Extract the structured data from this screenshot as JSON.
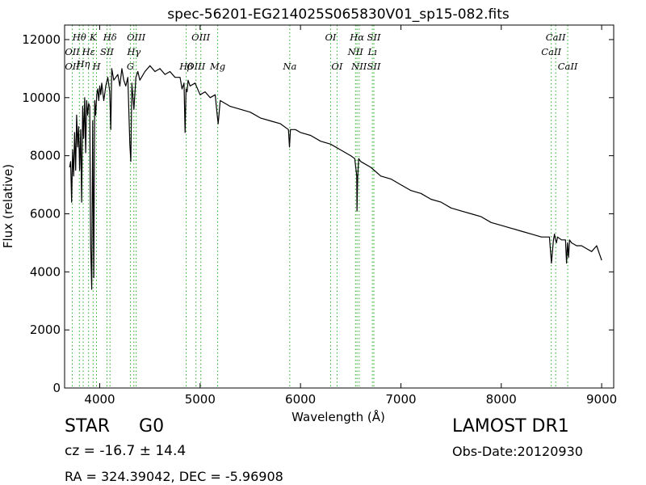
{
  "chart_data": {
    "type": "line",
    "title": "spec-56201-EG214025S065830V01_sp15-082.fits",
    "xlabel": "Wavelength (Å)",
    "ylabel": "Flux (relative)",
    "xlim": [
      3650,
      9120
    ],
    "ylim": [
      0,
      12500
    ],
    "xticks": [
      4000,
      5000,
      6000,
      7000,
      8000,
      9000
    ],
    "yticks": [
      0,
      2000,
      4000,
      6000,
      8000,
      10000,
      12000
    ],
    "line_color": "#000000",
    "marker_color": "#22aa22",
    "series": [
      {
        "x": [
          3700,
          3710,
          3720,
          3730,
          3740,
          3750,
          3760,
          3770,
          3780,
          3790,
          3800,
          3810,
          3820,
          3830,
          3840,
          3850,
          3860,
          3870,
          3880,
          3890,
          3900,
          3910,
          3920,
          3930,
          3940,
          3950,
          3960,
          3970,
          3980,
          3990,
          4000,
          4010,
          4020,
          4040,
          4060,
          4080,
          4100,
          4110,
          4120,
          4140,
          4160,
          4180,
          4200,
          4220,
          4240,
          4260,
          4280,
          4300,
          4310,
          4320,
          4340,
          4360,
          4380,
          4400,
          4450,
          4500,
          4550,
          4600,
          4650,
          4700,
          4750,
          4800,
          4820,
          4840,
          4850,
          4860,
          4870,
          4880,
          4900,
          4950,
          5000,
          5050,
          5100,
          5150,
          5170,
          5180,
          5200,
          5250,
          5300,
          5400,
          5500,
          5600,
          5700,
          5800,
          5880,
          5890,
          5900,
          5950,
          6000,
          6100,
          6200,
          6300,
          6400,
          6500,
          6540,
          6560,
          6563,
          6570,
          6580,
          6600,
          6700,
          6800,
          6900,
          7000,
          7100,
          7200,
          7300,
          7400,
          7500,
          7600,
          7700,
          7800,
          7900,
          8000,
          8100,
          8200,
          8300,
          8400,
          8480,
          8500,
          8520,
          8530,
          8540,
          8550,
          8560,
          8600,
          8640,
          8650,
          8660,
          8670,
          8680,
          8700,
          8750,
          8800,
          8850,
          8900,
          8950,
          8980,
          9000
        ],
        "y": [
          7600,
          7800,
          6400,
          8200,
          7300,
          8800,
          7500,
          9400,
          8300,
          9000,
          7500,
          8900,
          6400,
          9700,
          8600,
          10000,
          8100,
          9900,
          9400,
          9800,
          9700,
          4900,
          3400,
          9200,
          3800,
          9900,
          9400,
          10100,
          10300,
          9900,
          10400,
          10100,
          10500,
          9900,
          10400,
          10700,
          10200,
          8900,
          11000,
          10600,
          10700,
          10800,
          10400,
          11000,
          10600,
          10400,
          10700,
          8400,
          7800,
          10500,
          9600,
          10700,
          10900,
          10600,
          10900,
          11100,
          10900,
          11000,
          10800,
          10900,
          10700,
          10700,
          10300,
          10500,
          8800,
          10300,
          10200,
          10600,
          10400,
          10500,
          10100,
          10200,
          10000,
          10100,
          9400,
          9100,
          9900,
          9800,
          9700,
          9600,
          9500,
          9300,
          9200,
          9100,
          8900,
          8300,
          8900,
          8900,
          8800,
          8700,
          8500,
          8400,
          8200,
          8000,
          7900,
          7300,
          6100,
          7300,
          7900,
          7800,
          7600,
          7300,
          7200,
          7000,
          6800,
          6700,
          6500,
          6400,
          6200,
          6100,
          6000,
          5900,
          5700,
          5600,
          5500,
          5400,
          5300,
          5200,
          5200,
          4300,
          5100,
          5300,
          5100,
          5000,
          5200,
          5100,
          5100,
          4300,
          5000,
          4500,
          5100,
          5000,
          4900,
          4900,
          4800,
          4700,
          4900,
          4600,
          4400
        ]
      }
    ],
    "lines_top": [
      {
        "label": "Hθ",
        "x": 3797
      },
      {
        "label": "K",
        "x": 3934
      },
      {
        "label": "Hδ",
        "x": 4102
      },
      {
        "label": "OIII",
        "x": 4363
      },
      {
        "label": "OIII",
        "x": 5007
      },
      {
        "label": "OI",
        "x": 6300
      },
      {
        "label": "Hα",
        "x": 6563
      },
      {
        "label": "SII",
        "x": 6731
      },
      {
        "label": "CaII",
        "x": 8542
      }
    ],
    "lines_mid": [
      {
        "label": "OII",
        "x": 3727
      },
      {
        "label": "Hε",
        "x": 3889
      },
      {
        "label": "SII",
        "x": 4072
      },
      {
        "label": "Hγ",
        "x": 4340
      },
      {
        "label": "NII",
        "x": 6548
      },
      {
        "label": "Lı",
        "x": 6716
      },
      {
        "label": "CaII",
        "x": 8498
      }
    ],
    "lines_mid2": [
      {
        "label": "Hη",
        "x": 3835
      }
    ],
    "lines_bottom": [
      {
        "label": "OII",
        "x": 3727
      },
      {
        "label": "H",
        "x": 3968
      },
      {
        "label": "G",
        "x": 4305
      },
      {
        "label": "Hβ",
        "x": 4861
      },
      {
        "label": "OIII",
        "x": 4959
      },
      {
        "label": "Mg",
        "x": 5175
      },
      {
        "label": "Na",
        "x": 5893
      },
      {
        "label": "OI",
        "x": 6364
      },
      {
        "label": "NII",
        "x": 6584
      },
      {
        "label": "SII",
        "x": 6731
      },
      {
        "label": "CaII",
        "x": 8662
      }
    ]
  },
  "info": {
    "class": "STAR",
    "subclass": "G0",
    "survey": "LAMOST DR1",
    "cz_text": "cz = -16.7",
    "cz_err_text": "± 14.4",
    "obs_date": "Obs-Date:20120930",
    "radec": "RA = 324.39042, DEC = -5.96908"
  }
}
